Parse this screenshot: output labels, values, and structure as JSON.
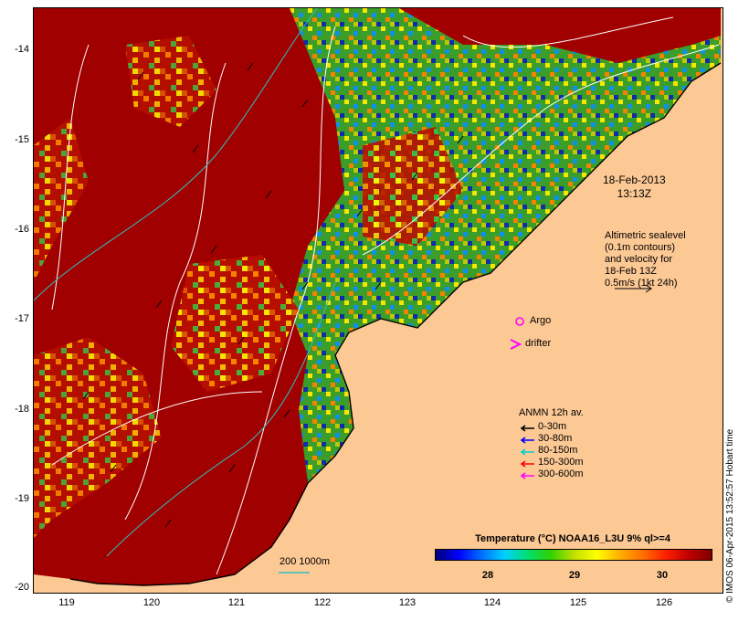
{
  "axes": {
    "y_labels": [
      "-14",
      "-15",
      "-16",
      "-17",
      "-18",
      "-19",
      "-20"
    ],
    "x_labels": [
      "119",
      "120",
      "121",
      "122",
      "123",
      "124",
      "125",
      "126"
    ]
  },
  "date": {
    "line1": "18-Feb-2013",
    "line2": "13:13Z"
  },
  "altimetry": {
    "lines": [
      "Altimetric sealevel",
      "(0.1m contours)",
      "and velocity for",
      "18-Feb 13Z",
      "0.5m/s (1kt 24h)"
    ]
  },
  "markers": {
    "argo_label": "Argo",
    "drifter_label": "drifter"
  },
  "anmn_legend": {
    "title": "ANMN 12h av.",
    "items": [
      {
        "label": "0-30m",
        "color": "#000000"
      },
      {
        "label": "30-80m",
        "color": "#0000ff"
      },
      {
        "label": "80-150m",
        "color": "#00d0d0"
      },
      {
        "label": "150-300m",
        "color": "#ff0000"
      },
      {
        "label": "300-600m",
        "color": "#ff00ff"
      }
    ]
  },
  "colorbar": {
    "title": "Temperature (°C) NOAA16_L3U 9% ql>=4",
    "ticks": [
      "28",
      "29",
      "30"
    ]
  },
  "bathymetry_label": "200  1000m",
  "timestamp": "© IMOS 06-Apr-2015 13:52:57 Hobart time",
  "colors": {
    "land": "#fcc894",
    "warm": "#a00000",
    "contour": "#ffffff",
    "isobath": "#30c0c0"
  }
}
